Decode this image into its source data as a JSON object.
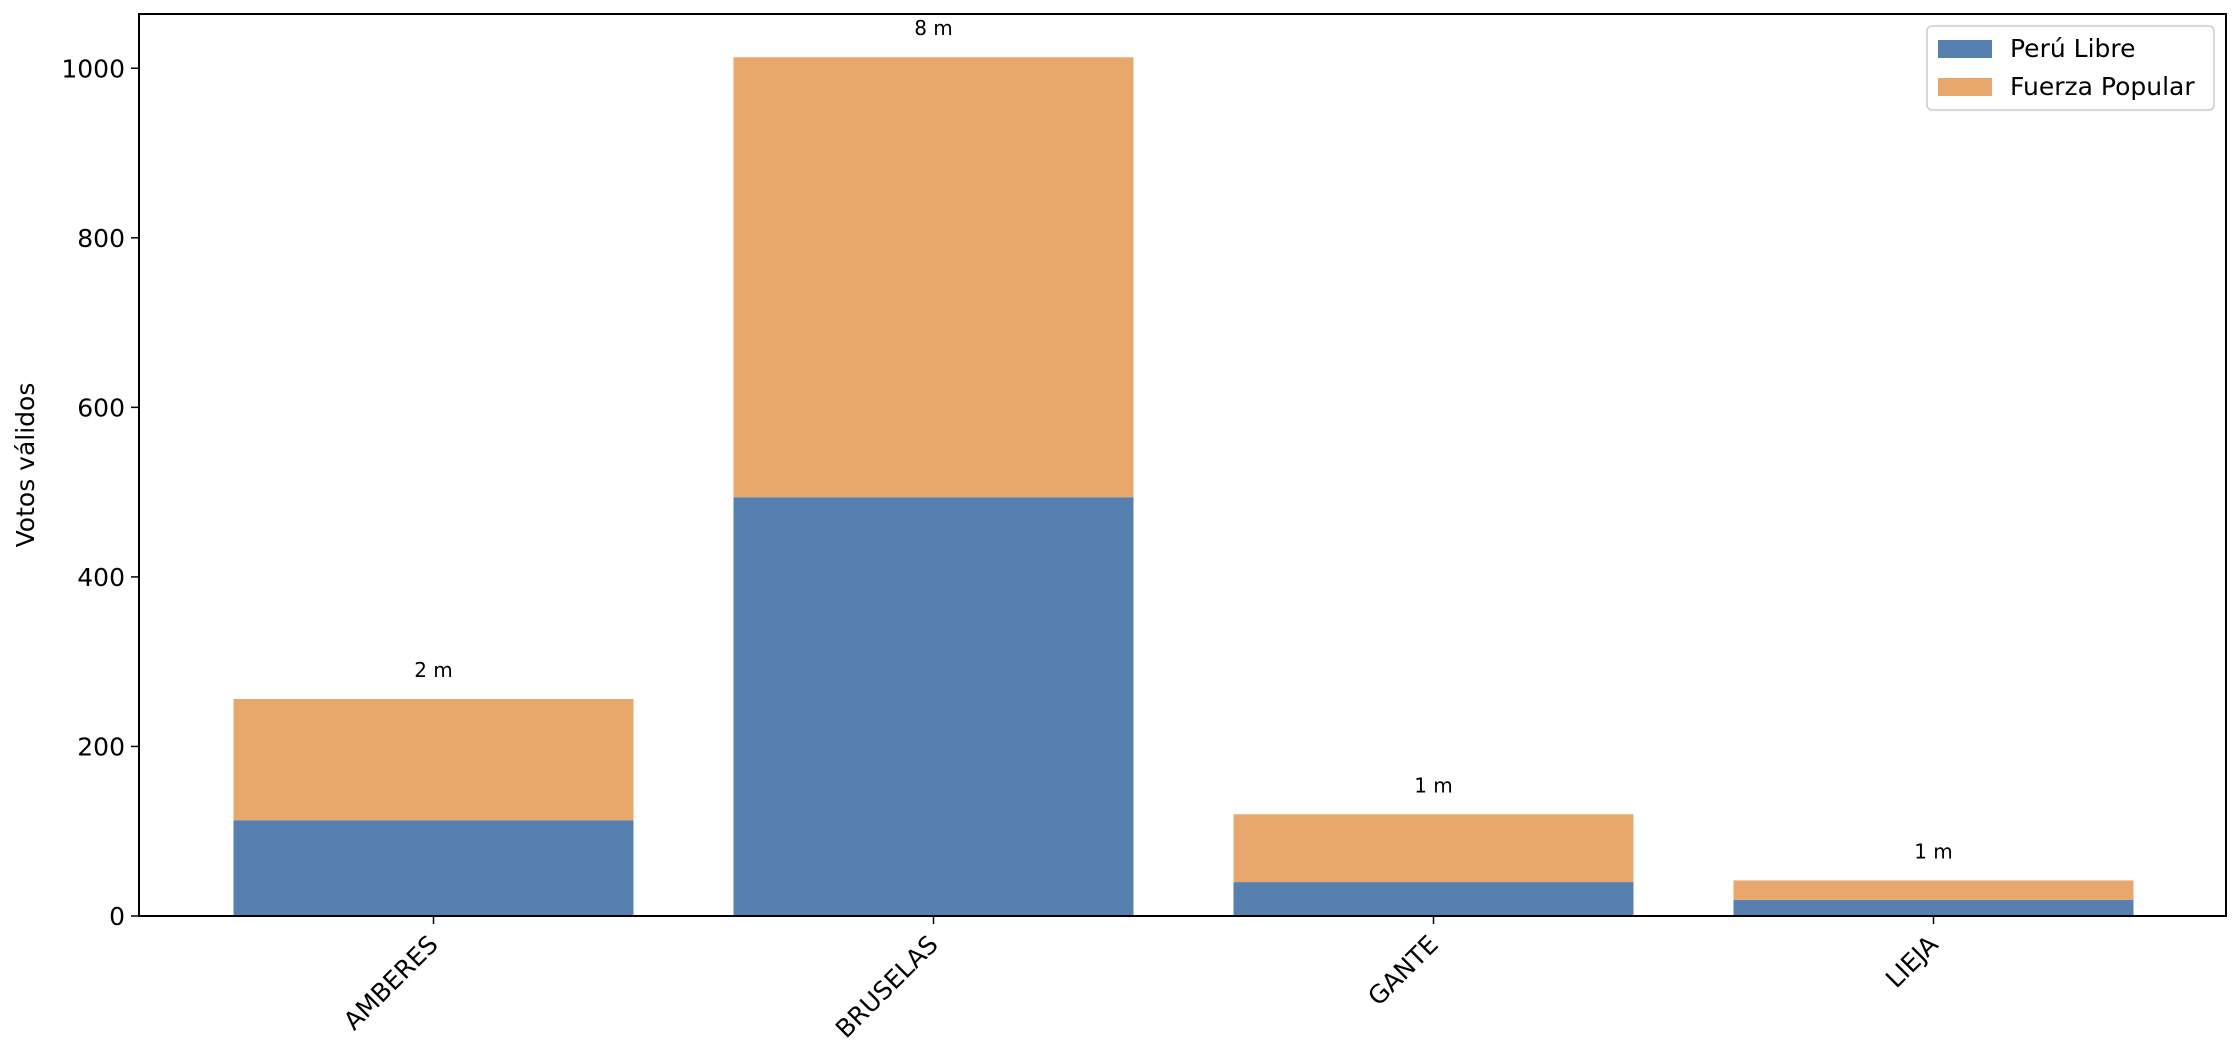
{
  "chart_data": {
    "type": "stacked_bar",
    "ylabel": "Votos válidos",
    "categories": [
      "AMBERES",
      "BRUSELAS",
      "GANTE",
      "LIEJA"
    ],
    "series": [
      {
        "name": "Perú Libre",
        "color": "#5580b0",
        "values": [
          113,
          494,
          40,
          19
        ]
      },
      {
        "name": "Fuerza Popular",
        "color": "#e8a86d",
        "values": [
          143,
          519,
          80,
          23
        ]
      }
    ],
    "bar_labels": [
      "2 m",
      "8 m",
      "1 m",
      "1 m"
    ],
    "ylim": [
      0,
      1064
    ],
    "yticks": [
      0,
      200,
      400,
      600,
      800,
      1000
    ],
    "legend": "upper right"
  }
}
